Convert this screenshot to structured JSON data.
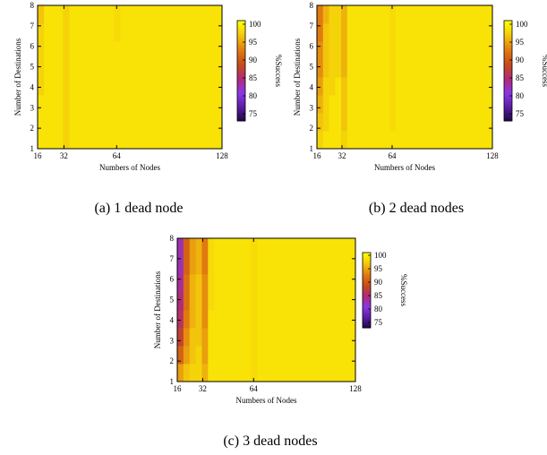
{
  "chart_data": [
    {
      "id": "a",
      "type": "heatmap",
      "caption": "(a)  1 dead node",
      "xlabel": "Numbers of Nodes",
      "ylabel": "Number of Destinations",
      "colorbar_label": "%Success",
      "x_ticks": [
        "16",
        "32",
        "64",
        "128"
      ],
      "y_ticks": [
        "1",
        "2",
        "3",
        "4",
        "5",
        "6",
        "7",
        "8"
      ],
      "colorbar_ticks": [
        "100",
        "95",
        "90",
        "85",
        "80",
        "75"
      ],
      "zlim": [
        73,
        101
      ],
      "x": [
        16,
        20,
        24,
        28,
        32,
        36,
        40,
        44,
        48,
        52,
        56,
        60,
        64,
        68,
        72,
        76,
        80,
        84,
        88,
        92,
        96,
        100,
        104,
        108,
        112,
        116,
        120,
        124,
        128
      ],
      "y": [
        1,
        2,
        3,
        4,
        5,
        6,
        7,
        8
      ],
      "z": [
        [
          99,
          99,
          99,
          99,
          98,
          99,
          99,
          99,
          99,
          99,
          99,
          99,
          99,
          99,
          99,
          99,
          99,
          99,
          99,
          99,
          99,
          99,
          99,
          99,
          99,
          99,
          99,
          99,
          99
        ],
        [
          99,
          99,
          99,
          99,
          98,
          99,
          99,
          99,
          99,
          99,
          99,
          99,
          99,
          99,
          99,
          99,
          99,
          99,
          99,
          99,
          99,
          99,
          99,
          99,
          99,
          99,
          99,
          99,
          99
        ],
        [
          99,
          99,
          99,
          99,
          98,
          99,
          99,
          99,
          99,
          99,
          99,
          99,
          99,
          99,
          99,
          99,
          99,
          99,
          99,
          99,
          99,
          99,
          99,
          99,
          99,
          99,
          99,
          99,
          99
        ],
        [
          98,
          99,
          99,
          99,
          98,
          99,
          99,
          99,
          99,
          99,
          99,
          99,
          99,
          99,
          99,
          99,
          99,
          99,
          99,
          99,
          99,
          99,
          99,
          99,
          99,
          99,
          99,
          99,
          99
        ],
        [
          98,
          99,
          99,
          99,
          98,
          99,
          99,
          99,
          99,
          99,
          99,
          99,
          99,
          99,
          99,
          99,
          99,
          99,
          99,
          99,
          99,
          99,
          99,
          99,
          99,
          99,
          99,
          99,
          99
        ],
        [
          98,
          99,
          99,
          99,
          98,
          99,
          99,
          99,
          99,
          99,
          99,
          99,
          99,
          99,
          99,
          99,
          99,
          99,
          99,
          99,
          99,
          99,
          99,
          99,
          99,
          99,
          99,
          99,
          99
        ],
        [
          98,
          99,
          99,
          99,
          98,
          99,
          99,
          99,
          99,
          99,
          99,
          99,
          98.5,
          99,
          99,
          99,
          99,
          99,
          99,
          99,
          99,
          99,
          99,
          99,
          99,
          99,
          99,
          99,
          99
        ],
        [
          97,
          99,
          99,
          99,
          98,
          99,
          99,
          99,
          99,
          99,
          99,
          99,
          98.5,
          99,
          99,
          99,
          99,
          99,
          99,
          99,
          99,
          99,
          99,
          99,
          99,
          99,
          99,
          99,
          99
        ]
      ]
    },
    {
      "id": "b",
      "type": "heatmap",
      "caption": "(b)  2 dead nodes",
      "xlabel": "Numbers of Nodes",
      "ylabel": "Number of Destinations",
      "colorbar_label": "%Success",
      "x_ticks": [
        "16",
        "32",
        "64",
        "128"
      ],
      "y_ticks": [
        "1",
        "2",
        "3",
        "4",
        "5",
        "6",
        "7",
        "8"
      ],
      "colorbar_ticks": [
        "100",
        "95",
        "90",
        "85",
        "80",
        "75"
      ],
      "zlim": [
        73,
        101
      ],
      "x": [
        16,
        20,
        24,
        28,
        32,
        36,
        40,
        44,
        48,
        52,
        56,
        60,
        64,
        68,
        72,
        76,
        80,
        84,
        88,
        92,
        96,
        100,
        104,
        108,
        112,
        116,
        120,
        124,
        128
      ],
      "y": [
        1,
        2,
        3,
        4,
        5,
        6,
        7,
        8
      ],
      "z": [
        [
          98,
          99,
          99,
          99,
          98,
          99,
          99,
          99,
          99,
          99,
          99,
          99,
          99,
          99,
          99,
          99,
          99,
          99,
          99,
          99,
          99,
          99,
          99,
          99,
          99,
          99,
          99,
          99,
          99
        ],
        [
          97,
          98,
          99,
          99,
          97,
          99,
          99,
          99,
          99,
          99,
          99,
          99,
          98.5,
          99,
          99,
          99,
          99,
          99,
          99,
          99,
          99,
          99,
          99,
          99,
          99,
          99,
          99,
          99,
          99
        ],
        [
          96,
          98,
          99,
          99,
          97,
          99,
          99,
          99,
          99,
          99,
          99,
          99,
          98.5,
          99,
          99,
          99,
          99,
          99,
          99,
          99,
          99,
          99,
          99,
          99,
          99,
          99,
          99,
          99,
          99
        ],
        [
          95,
          98,
          98,
          99,
          97,
          99,
          99,
          99,
          99,
          99,
          99,
          99,
          98.5,
          99,
          99,
          99,
          99,
          99,
          99,
          99,
          99,
          99,
          99,
          99,
          99,
          99,
          99,
          99,
          99
        ],
        [
          94,
          97,
          98,
          98,
          96,
          99,
          99,
          99,
          99,
          99,
          99,
          99,
          98.5,
          99,
          99,
          99,
          99,
          99,
          99,
          99,
          99,
          99,
          99,
          99,
          99,
          99,
          99,
          99,
          99
        ],
        [
          94,
          97,
          98,
          98,
          96,
          99,
          99,
          99,
          99,
          99,
          99,
          99,
          98.5,
          99,
          99,
          99,
          99,
          99,
          99,
          99,
          99,
          99,
          99,
          99,
          99,
          99,
          99,
          99,
          99
        ],
        [
          93,
          97,
          98,
          98,
          96,
          99,
          99,
          99,
          99,
          99,
          99,
          99,
          98.5,
          99,
          99,
          99,
          99,
          99,
          99,
          99,
          99,
          99,
          99,
          99,
          99,
          99,
          99,
          99,
          99
        ],
        [
          93,
          96,
          98,
          98,
          96,
          99,
          99,
          99,
          99,
          99,
          99,
          99,
          98.5,
          99,
          99,
          99,
          99,
          99,
          99,
          99,
          99,
          99,
          99,
          99,
          99,
          99,
          99,
          99,
          99
        ]
      ]
    },
    {
      "id": "c",
      "type": "heatmap",
      "caption": "(c)  3 dead nodes",
      "xlabel": "Numbers of Nodes",
      "ylabel": "Number of Destinations",
      "colorbar_label": "%Success",
      "x_ticks": [
        "16",
        "32",
        "64",
        "128"
      ],
      "y_ticks": [
        "1",
        "2",
        "3",
        "4",
        "5",
        "6",
        "7",
        "8"
      ],
      "colorbar_ticks": [
        "100",
        "95",
        "90",
        "85",
        "80",
        "75"
      ],
      "zlim": [
        73,
        101
      ],
      "x": [
        16,
        20,
        24,
        28,
        32,
        36,
        40,
        44,
        48,
        52,
        56,
        60,
        64,
        68,
        72,
        76,
        80,
        84,
        88,
        92,
        96,
        100,
        104,
        108,
        112,
        116,
        120,
        124,
        128
      ],
      "y": [
        1,
        2,
        3,
        4,
        5,
        6,
        7,
        8
      ],
      "z": [
        [
          95,
          97,
          98,
          98,
          96,
          99,
          99,
          99,
          99,
          99,
          99,
          99,
          98.5,
          99,
          99,
          99,
          99,
          99,
          99,
          99,
          99,
          99,
          99,
          99,
          99,
          99,
          99,
          99,
          99
        ],
        [
          91,
          95,
          97,
          98,
          95,
          99,
          99,
          99,
          99,
          99,
          99,
          99,
          98.5,
          99,
          99,
          99,
          99,
          99,
          99,
          99,
          99,
          99,
          99,
          99,
          99,
          99,
          99,
          99,
          99
        ],
        [
          88,
          94,
          97,
          97,
          95,
          99,
          99,
          99,
          99,
          99,
          99,
          99,
          98.5,
          99,
          99,
          99,
          99,
          99,
          99,
          99,
          99,
          99,
          99,
          99,
          99,
          99,
          99,
          99,
          99
        ],
        [
          86,
          93,
          96,
          97,
          94,
          99,
          99,
          99,
          99,
          99,
          99,
          99,
          98.5,
          99,
          99,
          99,
          99,
          99,
          99,
          99,
          99,
          99,
          99,
          99,
          99,
          99,
          99,
          99,
          99
        ],
        [
          85,
          92,
          96,
          97,
          94,
          98.5,
          99,
          99,
          99,
          99,
          99,
          99,
          98.5,
          99,
          99,
          99,
          99,
          99,
          99,
          99,
          99,
          99,
          99,
          99,
          99,
          99,
          99,
          99,
          99
        ],
        [
          84,
          92,
          96,
          97,
          94,
          98.5,
          99,
          99,
          99,
          99,
          99,
          99,
          98.5,
          99,
          99,
          99,
          99,
          99,
          99,
          99,
          99,
          99,
          99,
          99,
          99,
          99,
          99,
          99,
          99
        ],
        [
          83,
          91,
          95,
          96,
          93,
          98.5,
          99,
          99,
          99,
          99,
          99,
          99,
          98.5,
          99,
          99,
          99,
          99,
          99,
          99,
          99,
          99,
          99,
          99,
          99,
          99,
          99,
          99,
          99,
          99
        ],
        [
          83,
          91,
          95,
          96,
          93,
          98.5,
          99,
          99,
          99,
          99,
          99,
          99,
          98.5,
          99,
          99,
          99,
          99,
          99,
          99,
          99,
          99,
          99,
          99,
          99,
          99,
          99,
          99,
          99,
          99
        ]
      ]
    }
  ],
  "colormap": [
    "#140a3c",
    "#5a1aa0",
    "#8a38e8",
    "#b02a7a",
    "#c84a1a",
    "#e07a10",
    "#f2c40c",
    "#ffff00"
  ]
}
